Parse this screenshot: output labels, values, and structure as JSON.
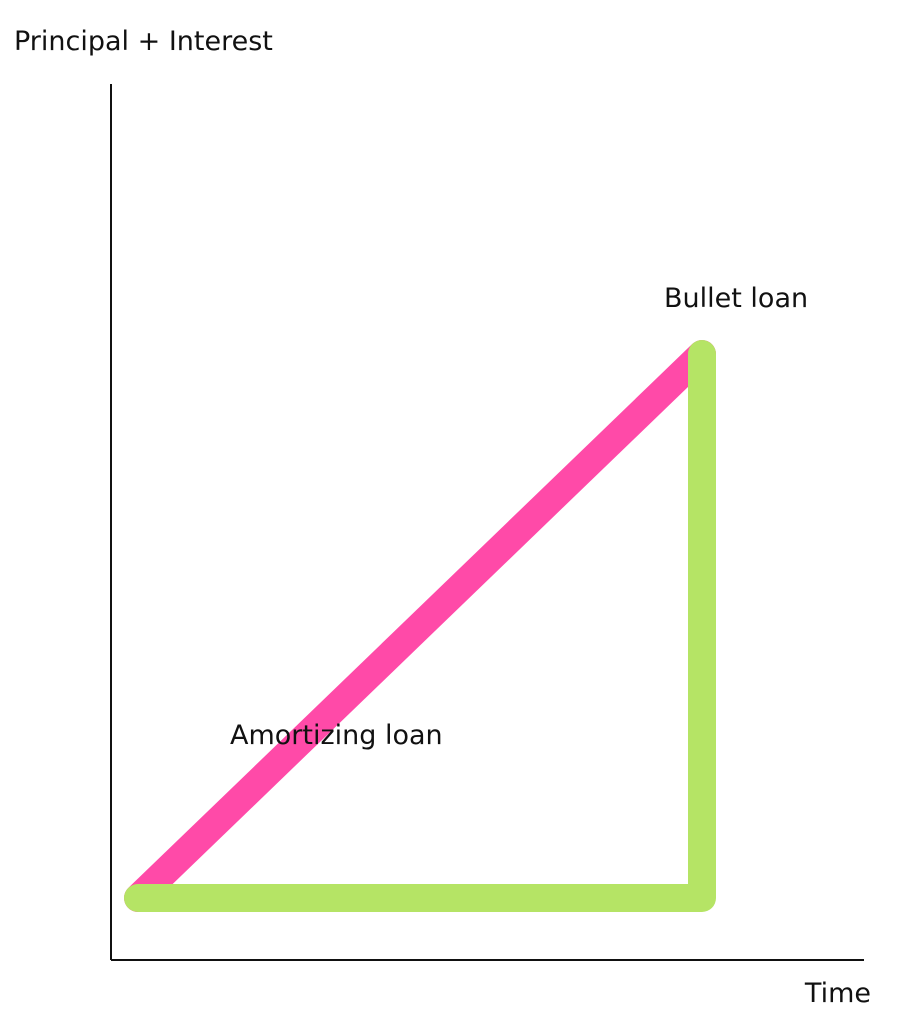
{
  "chart_data": {
    "type": "line",
    "title": "",
    "xlabel": "Time",
    "ylabel": "Principal + Interest",
    "grid": false,
    "legend": "none",
    "series": [
      {
        "name": "Amortizing loan",
        "color": "#ff4aa8",
        "points": [
          {
            "x": 0,
            "y": 1
          },
          {
            "x": 1,
            "y": 0
          }
        ]
      },
      {
        "name": "Bullet loan",
        "color": "#b5e465",
        "points": [
          {
            "x": 0,
            "y": 1
          },
          {
            "x": 1,
            "y": 1
          },
          {
            "x": 1,
            "y": 0
          }
        ]
      }
    ]
  }
}
